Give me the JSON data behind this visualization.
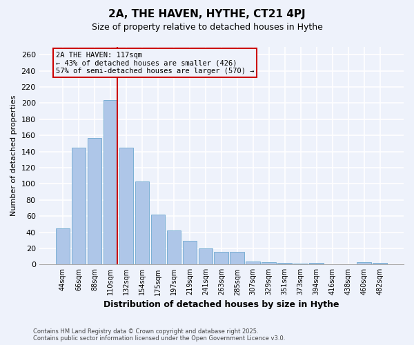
{
  "title_line1": "2A, THE HAVEN, HYTHE, CT21 4PJ",
  "title_line2": "Size of property relative to detached houses in Hythe",
  "xlabel": "Distribution of detached houses by size in Hythe",
  "ylabel": "Number of detached properties",
  "categories": [
    "44sqm",
    "66sqm",
    "88sqm",
    "110sqm",
    "132sqm",
    "154sqm",
    "175sqm",
    "197sqm",
    "219sqm",
    "241sqm",
    "263sqm",
    "285sqm",
    "307sqm",
    "329sqm",
    "351sqm",
    "373sqm",
    "394sqm",
    "416sqm",
    "438sqm",
    "460sqm",
    "482sqm"
  ],
  "values": [
    45,
    145,
    157,
    204,
    145,
    103,
    62,
    42,
    29,
    20,
    16,
    16,
    4,
    3,
    2,
    1,
    2,
    0,
    0,
    3,
    2
  ],
  "bar_color": "#aec6e8",
  "bar_edge_color": "#7aafd4",
  "background_color": "#eef2fb",
  "grid_color": "#ffffff",
  "annotation_title": "2A THE HAVEN: 117sqm",
  "annotation_line2": "← 43% of detached houses are smaller (426)",
  "annotation_line3": "57% of semi-detached houses are larger (570) →",
  "vline_color": "#cc0000",
  "box_edge_color": "#cc0000",
  "vline_bar_index": 3,
  "ylim": [
    0,
    270
  ],
  "yticks": [
    0,
    20,
    40,
    60,
    80,
    100,
    120,
    140,
    160,
    180,
    200,
    220,
    240,
    260
  ],
  "footer_line1": "Contains HM Land Registry data © Crown copyright and database right 2025.",
  "footer_line2": "Contains public sector information licensed under the Open Government Licence v3.0."
}
